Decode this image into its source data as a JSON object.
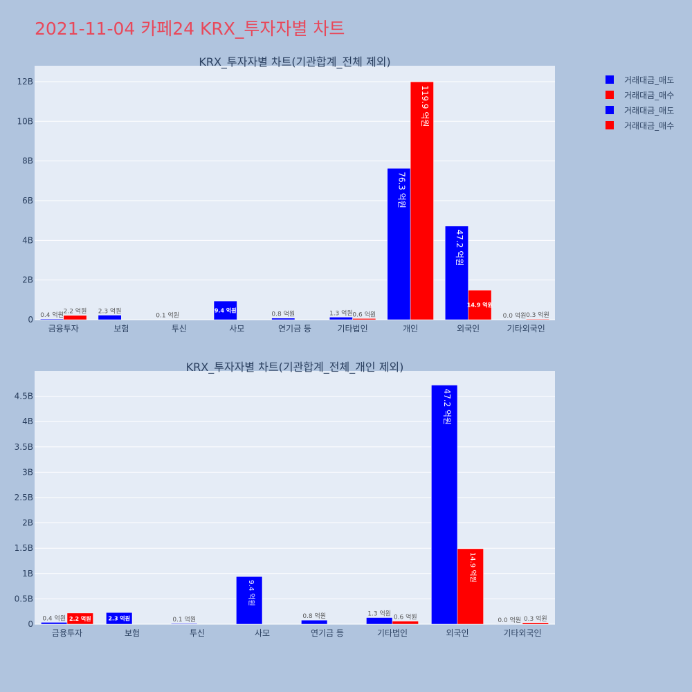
{
  "page": {
    "title": "2021-11-04 카페24 KRX_투자자별 차트"
  },
  "legend": [
    {
      "label": "거래대금_매도",
      "color": "#0000ff"
    },
    {
      "label": "거래대금_매수",
      "color": "#ff0000"
    },
    {
      "label": "거래대금_매도",
      "color": "#0000ff"
    },
    {
      "label": "거래대금_매수",
      "color": "#ff0000"
    }
  ],
  "chart_data": [
    {
      "type": "bar",
      "title": "KRX_투자자별 차트(기관합계_전체 제외)",
      "categories": [
        "금융투자",
        "보험",
        "투신",
        "사모",
        "연기금 등",
        "기타법인",
        "개인",
        "외국인",
        "기타외국인"
      ],
      "series": [
        {
          "name": "거래대금_매도",
          "color": "#0000ff",
          "values": [
            36000000,
            230000000,
            13000000,
            940000000,
            80000000,
            130000000,
            7630000000,
            4720000000,
            2000000
          ],
          "labels": [
            "0.4 억원",
            "2.3 억원",
            "0.1 억원",
            "9.4 억원",
            "0.8 억원",
            "1.3 억원",
            "76.3 억원",
            "47.2 억원",
            "0.0 억원"
          ]
        },
        {
          "name": "거래대금_매수",
          "color": "#ff0000",
          "values": [
            220000000,
            0,
            0,
            0,
            0,
            60000000,
            11990000000,
            1490000000,
            30000000
          ],
          "labels": [
            "2.2 억원",
            "",
            "",
            "",
            "",
            "0.6 억원",
            "119.9 억원",
            "14.9 억원",
            "0.3 억원"
          ]
        }
      ],
      "yticks": [
        0,
        2000000000,
        4000000000,
        6000000000,
        8000000000,
        10000000000,
        12000000000
      ],
      "ytick_labels": [
        "0",
        "2B",
        "4B",
        "6B",
        "8B",
        "10B",
        "12B"
      ],
      "ylim": [
        0,
        12800000000
      ],
      "grid": true
    },
    {
      "type": "bar",
      "title": "KRX_투자자별 차트(기관합계_전체_개인 제외)",
      "categories": [
        "금융투자",
        "보험",
        "투신",
        "사모",
        "연기금 등",
        "기타법인",
        "외국인",
        "기타외국인"
      ],
      "series": [
        {
          "name": "거래대금_매도",
          "color": "#0000ff",
          "values": [
            36000000,
            230000000,
            13000000,
            940000000,
            80000000,
            130000000,
            4720000000,
            2000000
          ],
          "labels": [
            "0.4 억원",
            "2.3 억원",
            "0.1 억원",
            "9.4 억원",
            "0.8 억원",
            "1.3 억원",
            "47.2 억원",
            "0.0 억원"
          ]
        },
        {
          "name": "거래대금_매수",
          "color": "#ff0000",
          "values": [
            220000000,
            0,
            0,
            0,
            0,
            60000000,
            1490000000,
            30000000
          ],
          "labels": [
            "2.2 억원",
            "",
            "",
            "",
            "",
            "0.6 억원",
            "14.9 억원",
            "0.3 억원"
          ]
        }
      ],
      "yticks": [
        0,
        500000000,
        1000000000,
        1500000000,
        2000000000,
        2500000000,
        3000000000,
        3500000000,
        4000000000,
        4500000000
      ],
      "ytick_labels": [
        "0",
        "0.5B",
        "1B",
        "1.5B",
        "2B",
        "2.5B",
        "3B",
        "3.5B",
        "4B",
        "4.5B"
      ],
      "ylim": [
        0,
        5000000000
      ],
      "grid": true
    }
  ]
}
